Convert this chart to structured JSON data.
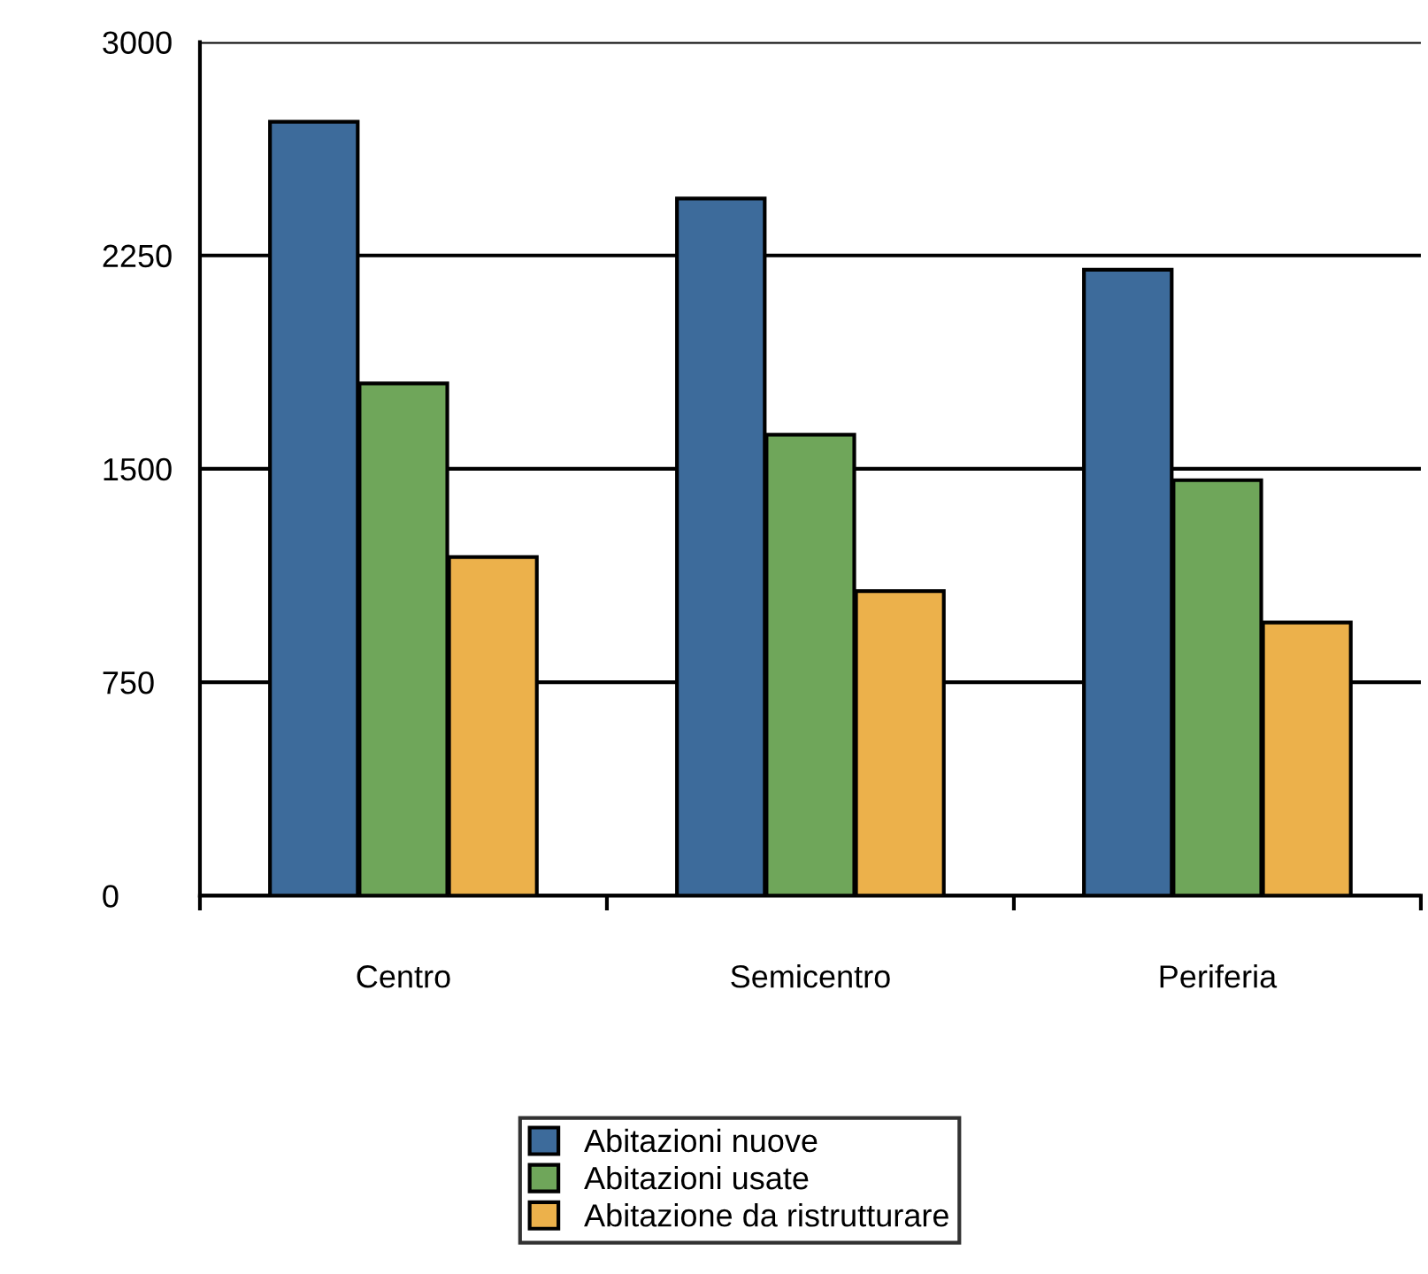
{
  "chart_data": {
    "type": "bar",
    "categories": [
      "Centro",
      "Semicentro",
      "Periferia"
    ],
    "series": [
      {
        "name": "Abitazioni nuove",
        "color": "#3d6b9b",
        "values": [
          2720,
          2450,
          2200
        ]
      },
      {
        "name": "Abitazioni usate",
        "color": "#6fa65a",
        "values": [
          1800,
          1620,
          1460
        ]
      },
      {
        "name": "Abitazione da ristrutturare",
        "color": "#ecb14b",
        "values": [
          1190,
          1070,
          960
        ]
      }
    ],
    "ylim": [
      0,
      3000
    ],
    "yticks": [
      0,
      750,
      1500,
      2250,
      3000
    ],
    "grid": "y",
    "legend": "bottom"
  }
}
